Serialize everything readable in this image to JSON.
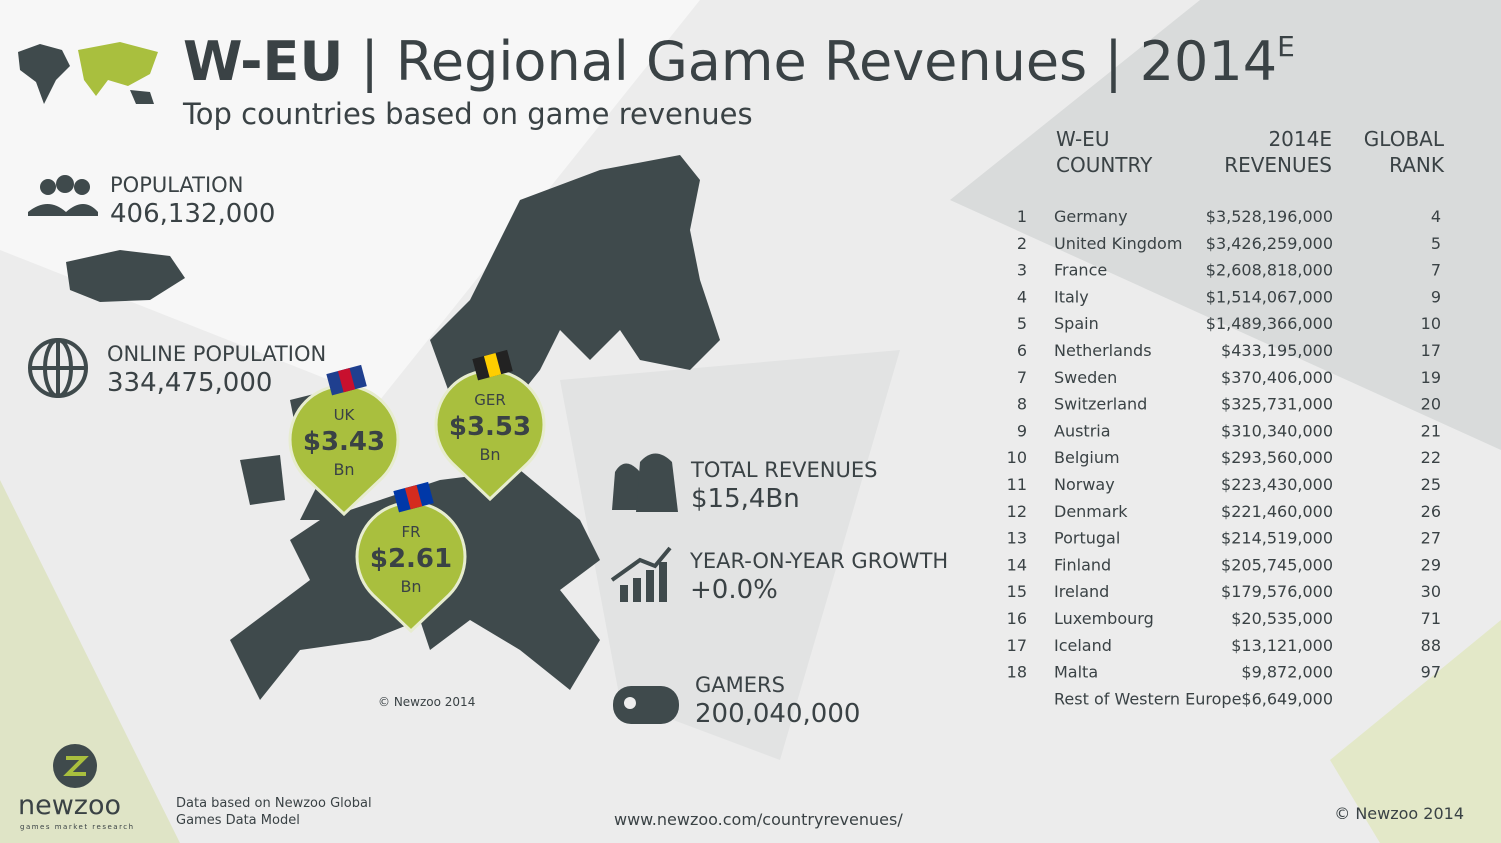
{
  "header": {
    "title": "W-EU",
    "title_rest": "| Regional Game Revenues | 2014",
    "title_sup": "E",
    "subtitle": "Top countries based on game revenues"
  },
  "stats": [
    {
      "label": "POPULATION",
      "value": "406,132,000"
    },
    {
      "label": "ONLINE POPULATION",
      "value": "334,475,000"
    },
    {
      "label": "TOTAL REVENUES",
      "value": "$15,4Bn"
    },
    {
      "label": "YEAR-ON-YEAR GROWTH",
      "value": "+0.0%"
    },
    {
      "label": "GAMERS",
      "value": "200,040,000"
    }
  ],
  "pins": [
    {
      "country": "UK",
      "amount": "$3.43",
      "unit": "Bn"
    },
    {
      "country": "GER",
      "amount": "$3.53",
      "unit": "Bn"
    },
    {
      "country": "FR",
      "amount": "$2.61",
      "unit": "Bn"
    }
  ],
  "map_copyright": "© Newzoo 2014",
  "table": {
    "headers": [
      [
        "W-EU",
        "COUNTRY"
      ],
      [
        "2014E",
        "REVENUES"
      ],
      [
        "GLOBAL",
        "RANK"
      ]
    ],
    "rows": [
      [
        "1",
        "Germany",
        "$3,528,196,000",
        "4"
      ],
      [
        "2",
        "United Kingdom",
        "$3,426,259,000",
        "5"
      ],
      [
        "3",
        "France",
        "$2,608,818,000",
        "7"
      ],
      [
        "4",
        "Italy",
        "$1,514,067,000",
        "9"
      ],
      [
        "5",
        "Spain",
        "$1,489,366,000",
        "10"
      ],
      [
        "6",
        "Netherlands",
        "$433,195,000",
        "17"
      ],
      [
        "7",
        "Sweden",
        "$370,406,000",
        "19"
      ],
      [
        "8",
        "Switzerland",
        "$325,731,000",
        "20"
      ],
      [
        "9",
        "Austria",
        "$310,340,000",
        "21"
      ],
      [
        "10",
        "Belgium",
        "$293,560,000",
        "22"
      ],
      [
        "11",
        "Norway",
        "$223,430,000",
        "25"
      ],
      [
        "12",
        "Denmark",
        "$221,460,000",
        "26"
      ],
      [
        "13",
        "Portugal",
        "$214,519,000",
        "27"
      ],
      [
        "14",
        "Finland",
        "$205,745,000",
        "29"
      ],
      [
        "15",
        "Ireland",
        "$179,576,000",
        "30"
      ],
      [
        "16",
        "Luxembourg",
        "$20,535,000",
        "71"
      ],
      [
        "17",
        "Iceland",
        "$13,121,000",
        "88"
      ],
      [
        "18",
        "Malta",
        "$9,872,000",
        "97"
      ],
      [
        null,
        "Rest of Western Europe",
        "$6,649,000",
        null
      ]
    ]
  },
  "footer": {
    "brand": "newzoo",
    "tagline": "games market research",
    "source": [
      "Data based on Newzoo Global",
      "Games Data Model"
    ],
    "url": "www.newzoo.com/countryrevenues/",
    "copyright": "© Newzoo 2014"
  }
}
